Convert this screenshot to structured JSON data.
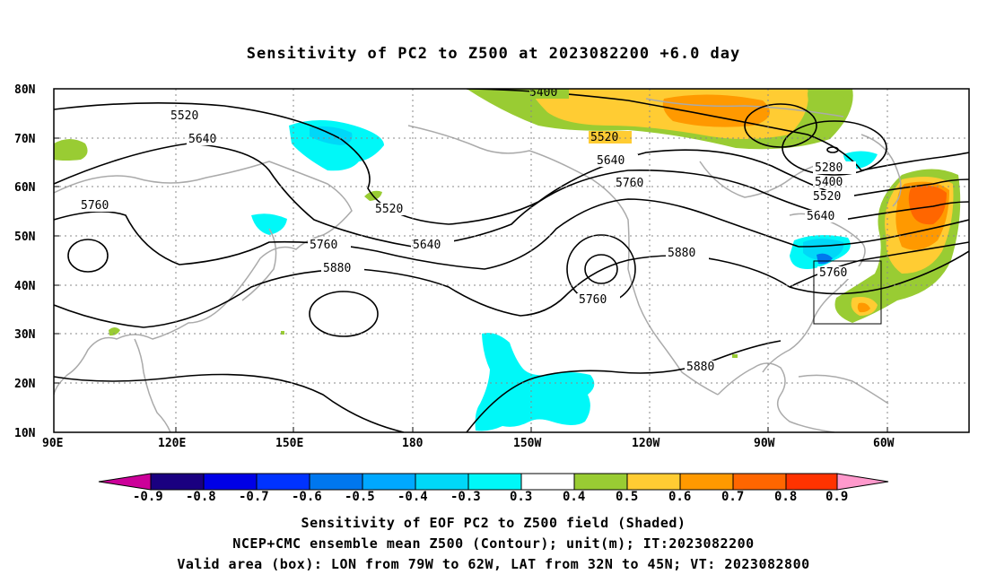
{
  "title": "Sensitivity of PC2 to Z500 at 2023082200 +6.0 day",
  "map": {
    "lat_labels": [
      "80N",
      "70N",
      "60N",
      "50N",
      "40N",
      "30N",
      "20N",
      "10N"
    ],
    "lon_labels": [
      "90E",
      "120E",
      "150E",
      "180",
      "150W",
      "120W",
      "90W",
      "60W"
    ],
    "contour_labels": [
      "5400",
      "5520",
      "5640",
      "5760",
      "5520",
      "5640",
      "5760",
      "5880",
      "5760",
      "5640",
      "5520",
      "5880",
      "5760",
      "5880",
      "5280",
      "5400",
      "5520",
      "5640",
      "5760"
    ],
    "grid": true,
    "valid_box": {
      "lon_range": [
        "79W",
        "62W"
      ],
      "lat_range": [
        "32N",
        "45N"
      ]
    }
  },
  "colorbar": {
    "labels": [
      "-0.9",
      "-0.8",
      "-0.7",
      "-0.6",
      "-0.5",
      "-0.4",
      "-0.3",
      "0.3",
      "0.4",
      "0.5",
      "0.6",
      "0.7",
      "0.8",
      "0.9"
    ],
    "colors": [
      "#1a0080",
      "#0000e6",
      "#0033ff",
      "#0077ee",
      "#00a8ff",
      "#00d8f8",
      "#00f8f8",
      "#ffffff",
      "#99cc33",
      "#ffcc33",
      "#ff9900",
      "#ff6600",
      "#ff3300",
      "#ff0000"
    ],
    "left_arrow_color": "#cc0099",
    "right_arrow_color": "#ff99cc"
  },
  "captions": {
    "line1": "Sensitivity of EOF PC2 to Z500 field (Shaded)",
    "line2": "NCEP+CMC ensemble mean Z500 (Contour); unit(m); IT:2023082200",
    "line3": "Valid area (box): LON from 79W to 62W, LAT from 32N to 45N; VT: 2023082800"
  }
}
